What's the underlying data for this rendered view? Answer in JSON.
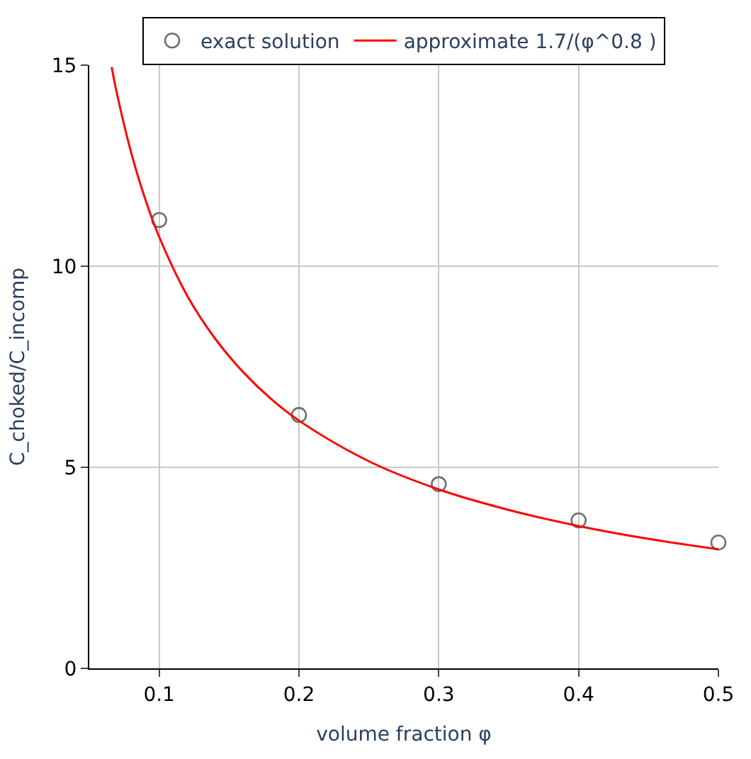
{
  "chart_data": {
    "type": "scatter",
    "xlabel": "volume fraction φ",
    "ylabel": "C_choked/C_incomp",
    "xlim": [
      0.05,
      0.5
    ],
    "xticks": [
      0.1,
      0.2,
      0.3,
      0.4,
      0.5
    ],
    "ylim": [
      0,
      15
    ],
    "yticks": [
      0,
      5,
      10,
      15
    ],
    "grid": true,
    "legend": "top",
    "series": [
      {
        "name": "exact solution",
        "marker": "circle",
        "color": "#707070",
        "x": [
          0.1,
          0.2,
          0.3,
          0.4,
          0.5
        ],
        "values": [
          11.15,
          6.3,
          4.58,
          3.68,
          3.13
        ]
      },
      {
        "name": "approximate 1.7/(φ^0.8 )",
        "type": "line",
        "marker": "none",
        "color": "#ff0000",
        "x": [
          0.066,
          0.07,
          0.08,
          0.09,
          0.1,
          0.12,
          0.14,
          0.16,
          0.18,
          0.2,
          0.25,
          0.3,
          0.35,
          0.4,
          0.45,
          0.5
        ],
        "values": [
          14.95,
          14.26,
          12.82,
          11.67,
          10.73,
          9.27,
          8.2,
          7.37,
          6.7,
          6.16,
          5.15,
          4.45,
          3.94,
          3.54,
          3.22,
          2.96
        ]
      }
    ]
  }
}
